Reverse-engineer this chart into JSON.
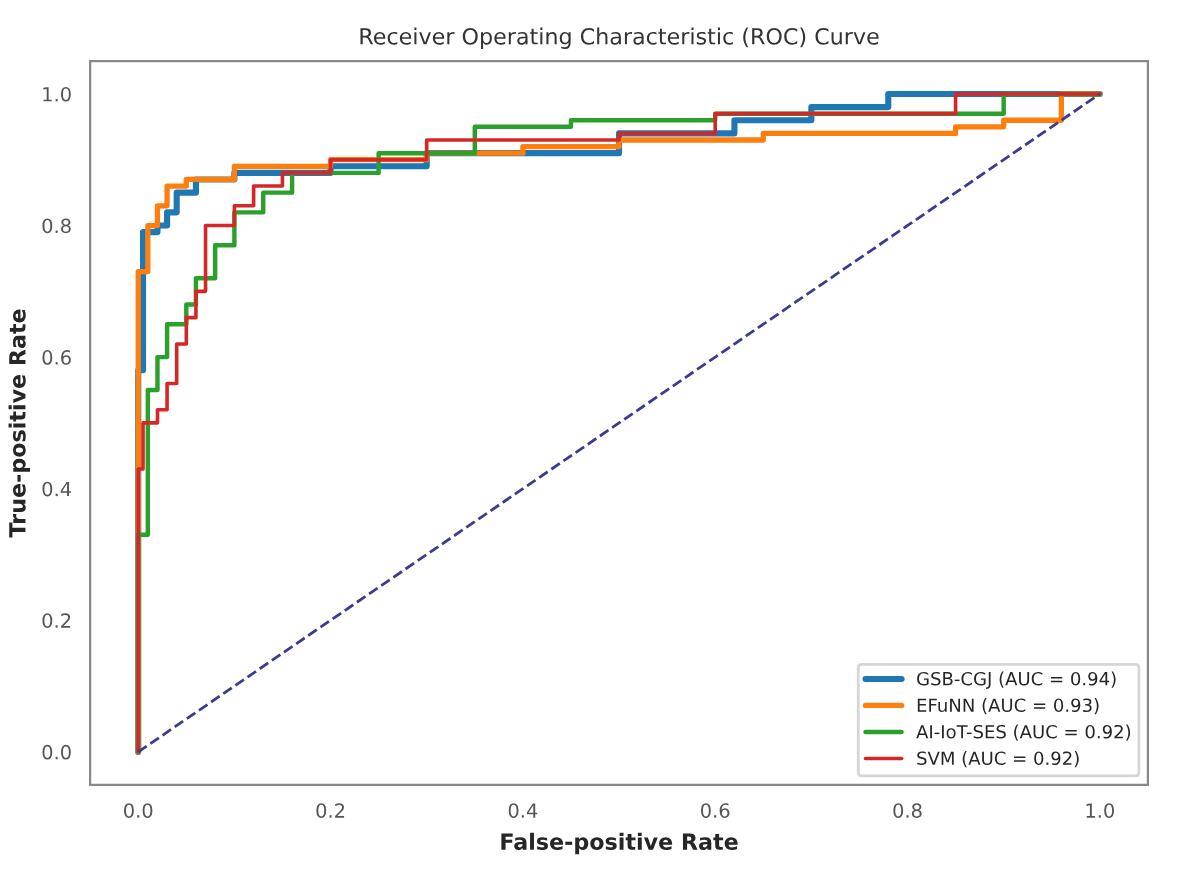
{
  "chart_data": {
    "type": "line",
    "title": "Receiver Operating Characteristic (ROC) Curve",
    "xlabel": "False-positive Rate",
    "ylabel": "True-positive Rate",
    "xlim": [
      -0.05,
      1.05
    ],
    "ylim": [
      -0.05,
      1.05
    ],
    "xticks": [
      {
        "value": 0,
        "label": "0.0"
      },
      {
        "value": 0.2,
        "label": "0.2"
      },
      {
        "value": 0.4,
        "label": "0.4"
      },
      {
        "value": 0.6,
        "label": "0.6"
      },
      {
        "value": 0.8,
        "label": "0.8"
      },
      {
        "value": 1,
        "label": "1.0"
      }
    ],
    "yticks": [
      {
        "value": 0,
        "label": "0.0"
      },
      {
        "value": 0.2,
        "label": "0.2"
      },
      {
        "value": 0.4,
        "label": "0.4"
      },
      {
        "value": 0.6,
        "label": "0.6"
      },
      {
        "value": 0.8,
        "label": "0.8"
      },
      {
        "value": 1,
        "label": "1.0"
      }
    ],
    "grid": false,
    "legend": "bottom right",
    "line_style": "solid",
    "series": [
      {
        "name": "GSB-CGJ (AUC = 0.94)",
        "color": "#1f77b4",
        "x": [
          0,
          0,
          0.005,
          0.005,
          0.02,
          0.02,
          0.03,
          0.03,
          0.04,
          0.04,
          0.06,
          0.06,
          0.1,
          0.1,
          0.2,
          0.2,
          0.3,
          0.3,
          0.5,
          0.5,
          0.62,
          0.62,
          0.7,
          0.7,
          0.78,
          0.78,
          1
        ],
        "values": [
          0,
          0.58,
          0.58,
          0.79,
          0.79,
          0.8,
          0.8,
          0.82,
          0.82,
          0.85,
          0.85,
          0.87,
          0.87,
          0.88,
          0.88,
          0.89,
          0.89,
          0.91,
          0.91,
          0.94,
          0.94,
          0.96,
          0.96,
          0.98,
          0.98,
          1,
          1
        ]
      },
      {
        "name": "EFuNN (AUC = 0.93)",
        "color": "#ff7f0e",
        "x": [
          0,
          0,
          0.01,
          0.01,
          0.02,
          0.02,
          0.03,
          0.03,
          0.05,
          0.05,
          0.1,
          0.1,
          0.2,
          0.2,
          0.3,
          0.3,
          0.4,
          0.4,
          0.5,
          0.5,
          0.65,
          0.65,
          0.85,
          0.85,
          0.9,
          0.9,
          0.96,
          0.96,
          1
        ],
        "values": [
          0,
          0.73,
          0.73,
          0.8,
          0.8,
          0.83,
          0.83,
          0.86,
          0.86,
          0.87,
          0.87,
          0.89,
          0.89,
          0.9,
          0.9,
          0.91,
          0.91,
          0.92,
          0.92,
          0.93,
          0.93,
          0.94,
          0.94,
          0.95,
          0.95,
          0.96,
          0.96,
          1,
          1
        ]
      },
      {
        "name": "AI-IoT-SES (AUC = 0.92)",
        "color": "#2ca02c",
        "x": [
          0,
          0,
          0.01,
          0.01,
          0.02,
          0.02,
          0.03,
          0.03,
          0.05,
          0.05,
          0.06,
          0.06,
          0.08,
          0.08,
          0.1,
          0.1,
          0.13,
          0.13,
          0.16,
          0.16,
          0.25,
          0.25,
          0.35,
          0.35,
          0.45,
          0.45,
          0.6,
          0.6,
          0.9,
          0.9,
          1
        ],
        "values": [
          0,
          0.33,
          0.33,
          0.55,
          0.55,
          0.6,
          0.6,
          0.65,
          0.65,
          0.68,
          0.68,
          0.72,
          0.72,
          0.77,
          0.77,
          0.82,
          0.82,
          0.85,
          0.85,
          0.88,
          0.88,
          0.91,
          0.91,
          0.95,
          0.95,
          0.96,
          0.96,
          0.97,
          0.97,
          1,
          1
        ]
      },
      {
        "name": "SVM (AUC = 0.92)",
        "color": "#d62728",
        "x": [
          0,
          0,
          0.005,
          0.005,
          0.02,
          0.02,
          0.03,
          0.03,
          0.04,
          0.04,
          0.05,
          0.05,
          0.06,
          0.06,
          0.07,
          0.07,
          0.1,
          0.1,
          0.12,
          0.12,
          0.15,
          0.15,
          0.2,
          0.2,
          0.3,
          0.3,
          0.5,
          0.5,
          0.6,
          0.6,
          0.85,
          0.85,
          1
        ],
        "values": [
          0,
          0.43,
          0.43,
          0.5,
          0.5,
          0.52,
          0.52,
          0.56,
          0.56,
          0.62,
          0.62,
          0.66,
          0.66,
          0.7,
          0.7,
          0.8,
          0.8,
          0.83,
          0.83,
          0.86,
          0.86,
          0.88,
          0.88,
          0.9,
          0.9,
          0.93,
          0.93,
          0.94,
          0.94,
          0.97,
          0.97,
          1,
          1
        ]
      },
      {
        "color": "#3b3b8f",
        "line_style": "dashed",
        "x": [
          0,
          1
        ],
        "values": [
          0,
          1
        ]
      }
    ]
  }
}
